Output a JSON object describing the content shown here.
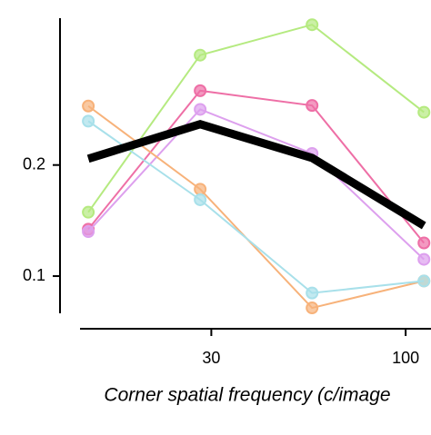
{
  "chart_data": {
    "type": "line",
    "x_label": "Corner spatial frequency (c/image",
    "x": [
      14,
      28,
      56,
      112
    ],
    "xlim": [
      13.3,
      117
    ],
    "xticks": [
      30,
      100
    ],
    "xscale": "log",
    "ylim": [
      0.072,
      0.5
    ],
    "yticks": [
      0.1,
      0.2
    ],
    "yscale": "log",
    "series": [
      {
        "color": "#b5ea80",
        "values": [
          0.149,
          0.397,
          0.48,
          0.278
        ]
      },
      {
        "color": "#ee6fa6",
        "values": [
          0.134,
          0.318,
          0.29,
          0.123
        ]
      },
      {
        "color": "#dda0ee",
        "values": [
          0.132,
          0.283,
          0.215,
          0.111
        ]
      },
      {
        "color": "#f7b27a",
        "values": [
          0.289,
          0.172,
          0.082,
          0.097
        ]
      },
      {
        "color": "#a8e0ea",
        "values": [
          0.263,
          0.161,
          0.09,
          0.097
        ]
      },
      {
        "color": "#000000",
        "values": [
          0.208,
          0.258,
          0.209,
          0.137
        ],
        "bold": true
      }
    ]
  }
}
